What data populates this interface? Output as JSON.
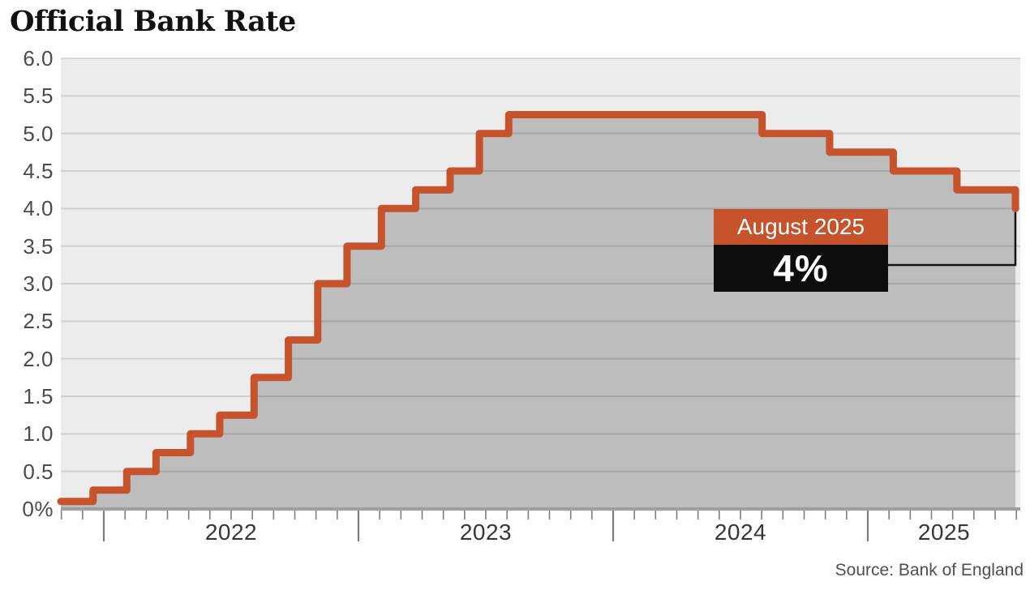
{
  "chart_data": {
    "type": "step-area",
    "title": "Official Bank Rate",
    "source": "Source: Bank of England",
    "unit": "%",
    "ylim": [
      0,
      6
    ],
    "grid": true,
    "y_ticks": [
      {
        "value": 6.0,
        "label": "6.0"
      },
      {
        "value": 5.5,
        "label": "5.5"
      },
      {
        "value": 5.0,
        "label": "5.0"
      },
      {
        "value": 4.5,
        "label": "4.5"
      },
      {
        "value": 4.0,
        "label": "4.0"
      },
      {
        "value": 3.5,
        "label": "3.5"
      },
      {
        "value": 3.0,
        "label": "3.0"
      },
      {
        "value": 2.5,
        "label": "2.5"
      },
      {
        "value": 2.0,
        "label": "2.0"
      },
      {
        "value": 1.5,
        "label": "1.5"
      },
      {
        "value": 1.0,
        "label": "1.0"
      },
      {
        "value": 0.5,
        "label": "0.5"
      },
      {
        "value": 0.0,
        "label": "0%"
      }
    ],
    "x_years": [
      {
        "year": 2022,
        "label": "2022"
      },
      {
        "year": 2023,
        "label": "2023"
      },
      {
        "year": 2024,
        "label": "2024"
      },
      {
        "year": 2025,
        "label": "2025"
      }
    ],
    "x_domain_years": [
      2021.83,
      2025.6
    ],
    "series": [
      {
        "date": "Nov 2021",
        "x": 2021.83,
        "rate": 0.1
      },
      {
        "date": "Dec 2021",
        "x": 2021.958,
        "rate": 0.25
      },
      {
        "date": "Feb 2022",
        "x": 2022.09,
        "rate": 0.5
      },
      {
        "date": "Mar 2022",
        "x": 2022.205,
        "rate": 0.75
      },
      {
        "date": "May 2022",
        "x": 2022.34,
        "rate": 1.0
      },
      {
        "date": "Jun 2022",
        "x": 2022.455,
        "rate": 1.25
      },
      {
        "date": "Aug 2022",
        "x": 2022.59,
        "rate": 1.75
      },
      {
        "date": "Sep 2022",
        "x": 2022.725,
        "rate": 2.25
      },
      {
        "date": "Nov 2022",
        "x": 2022.84,
        "rate": 3.0
      },
      {
        "date": "Dec 2022",
        "x": 2022.955,
        "rate": 3.5
      },
      {
        "date": "Feb 2023",
        "x": 2023.09,
        "rate": 4.0
      },
      {
        "date": "Mar 2023",
        "x": 2023.225,
        "rate": 4.25
      },
      {
        "date": "May 2023",
        "x": 2023.36,
        "rate": 4.5
      },
      {
        "date": "Jun 2023",
        "x": 2023.475,
        "rate": 5.0
      },
      {
        "date": "Aug 2023",
        "x": 2023.59,
        "rate": 5.25
      },
      {
        "date": "Aug 2024",
        "x": 2024.585,
        "rate": 5.0
      },
      {
        "date": "Nov 2024",
        "x": 2024.85,
        "rate": 4.75
      },
      {
        "date": "Feb 2025",
        "x": 2025.1,
        "rate": 4.5
      },
      {
        "date": "May 2025",
        "x": 2025.35,
        "rate": 4.25
      },
      {
        "date": "Aug 2025",
        "x": 2025.58,
        "rate": 4.0
      }
    ],
    "annotation": {
      "label": "August 2025",
      "value": "4%",
      "rate": 4.0
    },
    "colors": {
      "line": "#c7532c",
      "fill": "#bdbdbd",
      "plot_bg": "#ececec",
      "gridline": "rgba(0,0,0,0.12)",
      "axis": "#9f9f9f",
      "tick": "#7d7d7d",
      "annotation_label_bg": "#c7532c",
      "annotation_value_bg": "#0d0d0d",
      "annotation_text": "#ffffff",
      "connector": "#141414"
    }
  }
}
